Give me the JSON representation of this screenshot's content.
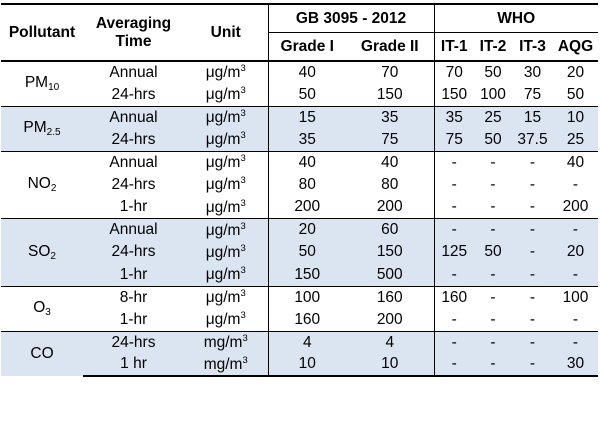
{
  "header": {
    "pollutant": "Pollutant",
    "averaging_time": [
      "Averaging",
      "Time"
    ],
    "unit": "Unit",
    "gb_group": "GB 3095 - 2012",
    "who_group": "WHO",
    "gb_cols": [
      "Grade I",
      "Grade II"
    ],
    "who_cols": [
      "IT-1",
      "IT-2",
      "IT-3",
      "AQG"
    ]
  },
  "groups": [
    {
      "pollutant": {
        "base": "PM",
        "sub": "10"
      },
      "shaded": false,
      "rows": [
        {
          "time": "Annual",
          "unit": {
            "base": "μg/m",
            "sup": "3"
          },
          "g1": "40",
          "g2": "70",
          "it1": "70",
          "it2": "50",
          "it3": "30",
          "aqg": "20"
        },
        {
          "time": "24-hrs",
          "unit": {
            "base": "μg/m",
            "sup": "3"
          },
          "g1": "50",
          "g2": "150",
          "it1": "150",
          "it2": "100",
          "it3": "75",
          "aqg": "50"
        }
      ]
    },
    {
      "pollutant": {
        "base": "PM",
        "sub": "2.5"
      },
      "shaded": true,
      "rows": [
        {
          "time": "Annual",
          "unit": {
            "base": "μg/m",
            "sup": "3"
          },
          "g1": "15",
          "g2": "35",
          "it1": "35",
          "it2": "25",
          "it3": "15",
          "aqg": "10"
        },
        {
          "time": "24-hrs",
          "unit": {
            "base": "μg/m",
            "sup": "3"
          },
          "g1": "35",
          "g2": "75",
          "it1": "75",
          "it2": "50",
          "it3": "37.5",
          "aqg": "25"
        }
      ]
    },
    {
      "pollutant": {
        "base": "NO",
        "sub": "2"
      },
      "shaded": false,
      "rows": [
        {
          "time": "Annual",
          "unit": {
            "base": "μg/m",
            "sup": "3"
          },
          "g1": "40",
          "g2": "40",
          "it1": "-",
          "it2": "-",
          "it3": "-",
          "aqg": "40"
        },
        {
          "time": "24-hrs",
          "unit": {
            "base": "μg/m",
            "sup": "3"
          },
          "g1": "80",
          "g2": "80",
          "it1": "-",
          "it2": "-",
          "it3": "-",
          "aqg": "-"
        },
        {
          "time": "1-hr",
          "unit": {
            "base": "μg/m",
            "sup": "3"
          },
          "g1": "200",
          "g2": "200",
          "it1": "-",
          "it2": "-",
          "it3": "-",
          "aqg": "200"
        }
      ]
    },
    {
      "pollutant": {
        "base": "SO",
        "sub": "2"
      },
      "shaded": true,
      "rows": [
        {
          "time": "Annual",
          "unit": {
            "base": "μg/m",
            "sup": "3"
          },
          "g1": "20",
          "g2": "60",
          "it1": "-",
          "it2": "-",
          "it3": "-",
          "aqg": "-"
        },
        {
          "time": "24-hrs",
          "unit": {
            "base": "μg/m",
            "sup": "3"
          },
          "g1": "50",
          "g2": "150",
          "it1": "125",
          "it2": "50",
          "it3": "-",
          "aqg": "20"
        },
        {
          "time": "1-hr",
          "unit": {
            "base": "μg/m",
            "sup": "3"
          },
          "g1": "150",
          "g2": "500",
          "it1": "-",
          "it2": "-",
          "it3": "-",
          "aqg": "-"
        }
      ]
    },
    {
      "pollutant": {
        "base": "O",
        "sub": "3"
      },
      "shaded": false,
      "rows": [
        {
          "time": "8-hr",
          "unit": {
            "base": "μg/m",
            "sup": "3"
          },
          "g1": "100",
          "g2": "160",
          "it1": "160",
          "it2": "-",
          "it3": "-",
          "aqg": "100"
        },
        {
          "time": "1-hr",
          "unit": {
            "base": "μg/m",
            "sup": "3"
          },
          "g1": "160",
          "g2": "200",
          "it1": "-",
          "it2": "-",
          "it3": "-",
          "aqg": "-"
        }
      ]
    },
    {
      "pollutant": {
        "base": "CO",
        "sub": ""
      },
      "shaded": true,
      "rows": [
        {
          "time": "24-hrs",
          "unit": {
            "base": "mg/m",
            "sup": "3"
          },
          "g1": "4",
          "g2": "4",
          "it1": "-",
          "it2": "-",
          "it3": "-",
          "aqg": "-"
        },
        {
          "time": "1 hr",
          "unit": {
            "base": "mg/m",
            "sup": "3"
          },
          "g1": "10",
          "g2": "10",
          "it1": "-",
          "it2": "-",
          "it3": "-",
          "aqg": "30"
        }
      ]
    }
  ]
}
